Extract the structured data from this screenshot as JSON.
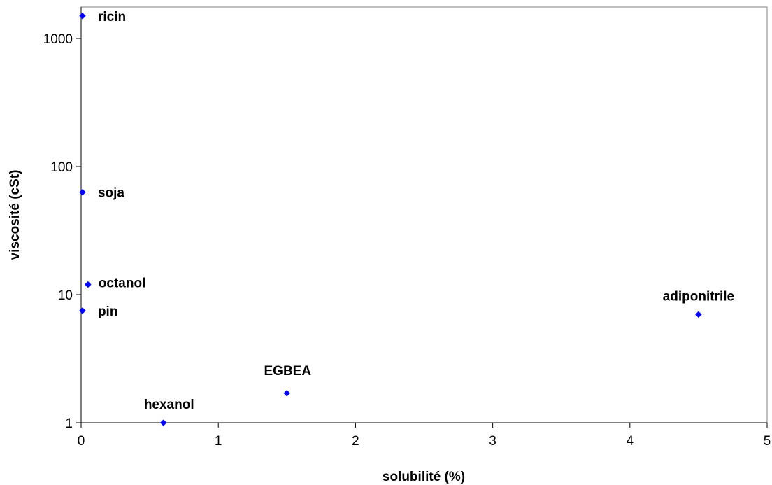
{
  "chart_data": {
    "type": "scatter",
    "title": "",
    "xlabel": "solubilité (%)",
    "ylabel": "viscosité (cSt)",
    "xlim": [
      0,
      5
    ],
    "ylim": [
      1,
      2000
    ],
    "y_scale": "log",
    "grid": false,
    "legend": "none",
    "x_ticks": [
      "0",
      "1",
      "2",
      "3",
      "4",
      "5"
    ],
    "y_ticks": [
      "1",
      "10",
      "100",
      "1000"
    ],
    "marker": "diamond",
    "color": "#0000ff",
    "points": [
      {
        "label": "ricin",
        "x": 0.01,
        "y": 1500
      },
      {
        "label": "soja",
        "x": 0.01,
        "y": 63
      },
      {
        "label": "octanol",
        "x": 0.05,
        "y": 12
      },
      {
        "label": "pin",
        "x": 0.01,
        "y": 7.5
      },
      {
        "label": "hexanol",
        "x": 0.6,
        "y": 1
      },
      {
        "label": "EGBEA",
        "x": 1.5,
        "y": 1.7
      },
      {
        "label": "adiponitrile",
        "x": 4.5,
        "y": 7
      }
    ]
  }
}
